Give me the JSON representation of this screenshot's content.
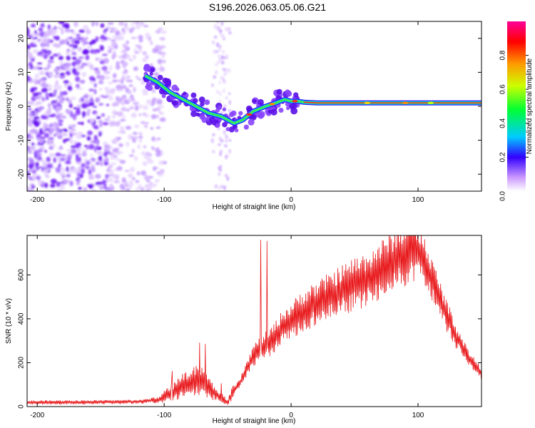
{
  "title": "S196.2026.063.05.06.G21",
  "chart_data": [
    {
      "type": "heatmap",
      "xlabel": "Height of straight line (km)",
      "ylabel": "Frequency (Hz)",
      "xlim": [
        -208,
        150
      ],
      "ylim": [
        -25,
        25
      ],
      "xticks": [
        -200,
        -100,
        0,
        100
      ],
      "xtick_labels": [
        "-200",
        "-100",
        "0",
        "100"
      ],
      "yticks": [
        -20,
        -10,
        0,
        10,
        20
      ],
      "ytick_labels": [
        "-20",
        "-10",
        "0",
        "10",
        "20"
      ],
      "ridge": {
        "x": [
          -115,
          -105,
          -95,
          -85,
          -75,
          -65,
          -55,
          -45,
          -38,
          -30,
          -20,
          -12,
          -5,
          0,
          5,
          10,
          20,
          50,
          100,
          150
        ],
        "y": [
          9,
          7,
          4,
          2,
          0,
          -2,
          -3,
          -5,
          -4,
          -1.5,
          0,
          1,
          2,
          1.5,
          1.5,
          1.2,
          1,
          1,
          1,
          1
        ]
      },
      "noise_region_x": [
        -208,
        -100
      ],
      "colorbar": {
        "label": "Normalized spectral amplitude",
        "range": [
          0,
          1
        ],
        "ticks": [
          0.2,
          0.4,
          0.6,
          0.8
        ],
        "tick_labels": [
          "0.2",
          "0.4",
          "0.6",
          "0.8"
        ],
        "bottom_label": "0.0"
      }
    },
    {
      "type": "line",
      "xlabel": "Height of straight line (km)",
      "ylabel": "SNR (10 * v/v)",
      "xlim": [
        -208,
        150
      ],
      "ylim": [
        0,
        780
      ],
      "xticks": [
        -200,
        -100,
        0,
        100
      ],
      "xtick_labels": [
        "-200",
        "-100",
        "0",
        "100"
      ],
      "yticks": [
        0,
        200,
        400,
        600
      ],
      "ytick_labels": [
        "0",
        "200",
        "400",
        "600"
      ],
      "series": [
        {
          "name": "SNR",
          "color": "#e8191c",
          "x": [
            -208,
            -180,
            -150,
            -120,
            -105,
            -95,
            -85,
            -75,
            -68,
            -62,
            -55,
            -50,
            -45,
            -40,
            -35,
            -30,
            -25,
            -20,
            -15,
            -10,
            -5,
            0,
            10,
            20,
            30,
            40,
            50,
            60,
            70,
            80,
            90,
            95,
            100,
            105,
            110,
            120,
            130,
            140,
            150
          ],
          "y": [
            18,
            20,
            20,
            22,
            30,
            60,
            95,
            120,
            115,
            70,
            40,
            20,
            70,
            110,
            170,
            230,
            260,
            280,
            300,
            340,
            370,
            390,
            440,
            470,
            500,
            530,
            560,
            580,
            620,
            660,
            700,
            720,
            700,
            660,
            590,
            450,
            320,
            220,
            150
          ],
          "spikes": [
            {
              "x": -24,
              "y": 760
            },
            {
              "x": -19,
              "y": 755
            }
          ]
        }
      ]
    }
  ],
  "colors": {
    "line": "#e8191c",
    "axis": "#000000"
  }
}
